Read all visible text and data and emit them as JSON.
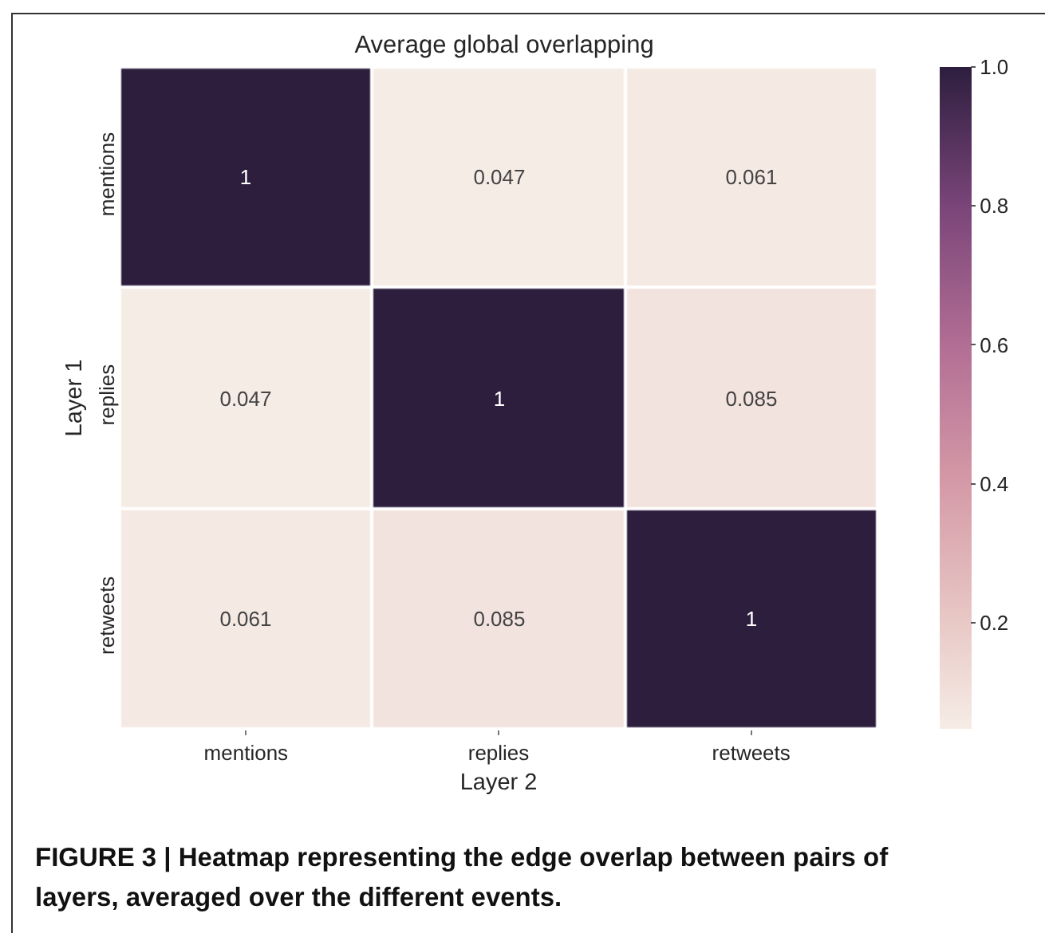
{
  "chart_data": {
    "type": "heatmap",
    "title": "Average global overlapping",
    "xlabel": "Layer 2",
    "ylabel": "Layer 1",
    "categories": [
      "mentions",
      "replies",
      "retweets"
    ],
    "y_categories": [
      "mentions",
      "replies",
      "retweets"
    ],
    "cells": [
      [
        1,
        0.047,
        0.061
      ],
      [
        0.047,
        1,
        0.085
      ],
      [
        0.061,
        0.085,
        1
      ]
    ],
    "data_labels": true,
    "clim": [
      0.047,
      1
    ],
    "cticks": [
      0.2,
      0.4,
      0.6,
      0.8,
      {
        "value": 1,
        "label": "1.0"
      }
    ],
    "annotations": [
      "FIGURE 3 | Heatmap representing the edge overlap between pairs of layers, averaged over the different events."
    ]
  }
}
